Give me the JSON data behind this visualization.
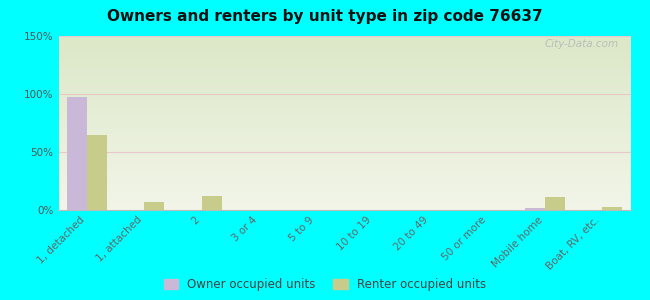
{
  "title": "Owners and renters by unit type in zip code 76637",
  "categories": [
    "1, detached",
    "1, attached",
    "2",
    "3 or 4",
    "5 to 9",
    "10 to 19",
    "20 to 49",
    "50 or more",
    "Mobile home",
    "Boat, RV, etc."
  ],
  "owner_values": [
    97,
    0,
    0,
    0,
    0,
    0,
    0,
    0,
    2,
    0
  ],
  "renter_values": [
    65,
    7,
    12,
    0,
    0,
    0,
    0,
    0,
    11,
    3
  ],
  "owner_color": "#c9b8d8",
  "renter_color": "#c8cc8a",
  "background_color": "#00ffff",
  "plot_bg_top": "#dce8c8",
  "plot_bg_bottom": "#f2f5e8",
  "grid_color": "#e8c8c8",
  "ylim": [
    0,
    150
  ],
  "yticks": [
    0,
    50,
    100,
    150
  ],
  "ytick_labels": [
    "0%",
    "50%",
    "100%",
    "150%"
  ],
  "legend_owner": "Owner occupied units",
  "legend_renter": "Renter occupied units",
  "watermark": "City-Data.com",
  "bar_width": 0.35
}
